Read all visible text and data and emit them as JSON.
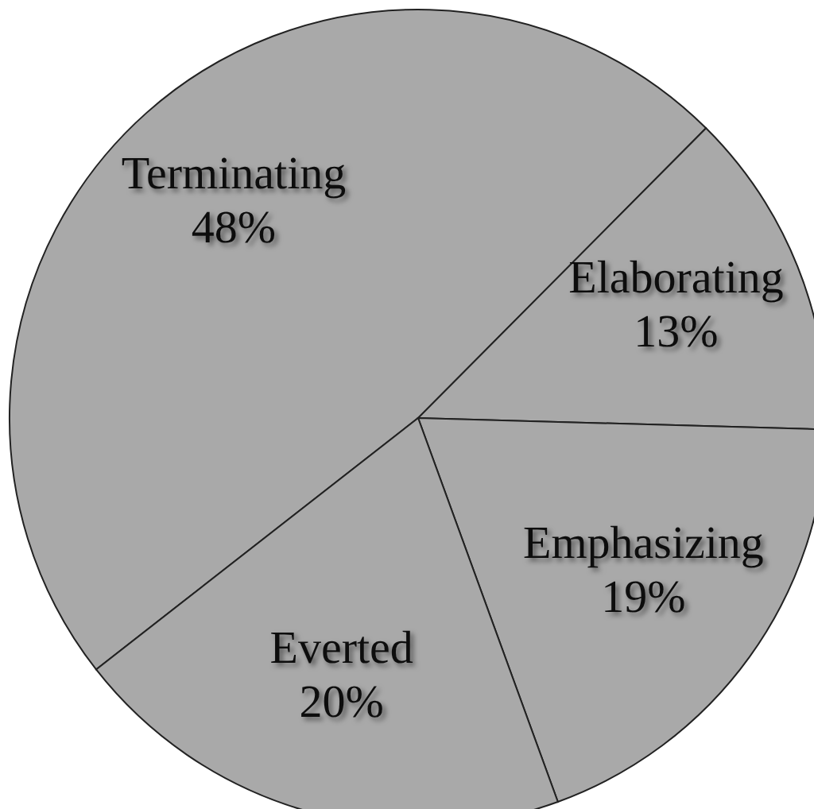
{
  "chart_data": {
    "type": "pie",
    "categories": [
      "Terminating",
      "Elaborating",
      "Emphasizing",
      "Everted"
    ],
    "values": [
      48,
      13,
      19,
      20
    ],
    "colors": [
      "#a9a9a9",
      "#a9a9a9",
      "#a9a9a9",
      "#a9a9a9"
    ],
    "value_labels": [
      "48%",
      "13%",
      "19%",
      "20%"
    ]
  }
}
